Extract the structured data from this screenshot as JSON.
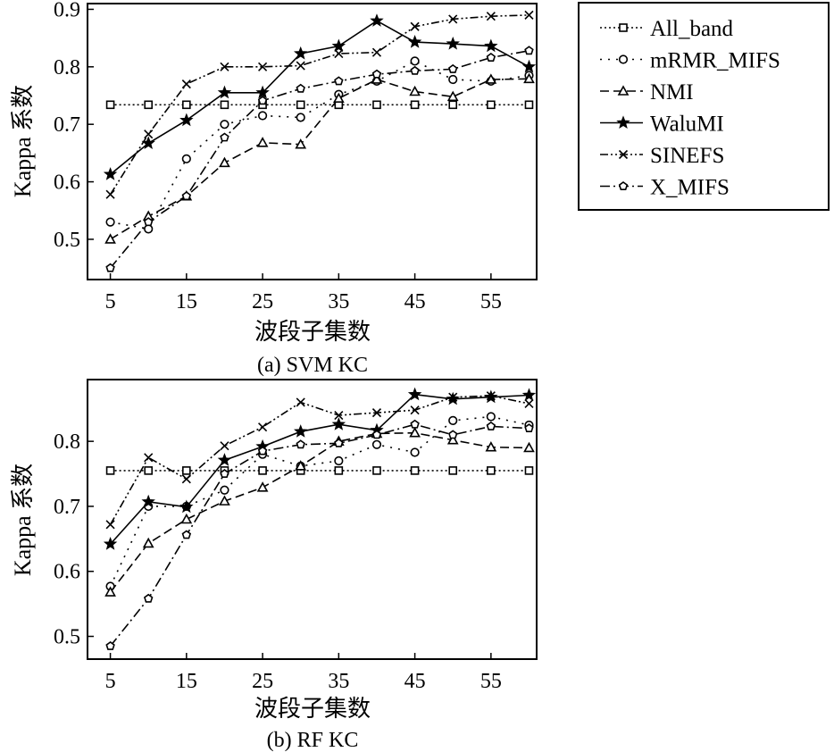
{
  "legend": {
    "entries": [
      "All_band",
      "mRMR_MIFS",
      "NMI",
      "WaluMI",
      "SINEFS",
      "X_MIFS"
    ]
  },
  "chart_data": [
    {
      "type": "line",
      "caption": "(a) SVM KC",
      "xlabel": "波段子集数",
      "ylabel": "Kappa 系数",
      "x": [
        5,
        10,
        15,
        20,
        25,
        30,
        35,
        40,
        45,
        50,
        55,
        60
      ],
      "xticks": [
        5,
        15,
        25,
        35,
        45,
        55
      ],
      "yticks": [
        0.5,
        0.6,
        0.7,
        0.8,
        0.9
      ],
      "xlim": [
        2,
        61
      ],
      "ylim": [
        0.43,
        0.91
      ],
      "grid": false,
      "legend_position": "right",
      "series": [
        {
          "name": "All_band",
          "marker": "square",
          "dash": "dotted",
          "values": [
            0.734,
            0.734,
            0.734,
            0.734,
            0.734,
            0.734,
            0.734,
            0.734,
            0.734,
            0.734,
            0.734,
            0.734
          ]
        },
        {
          "name": "mRMR_MIFS",
          "marker": "circle",
          "dash": "sparse-dotted",
          "values": [
            0.53,
            0.518,
            0.64,
            0.7,
            0.715,
            0.712,
            0.752,
            0.775,
            0.81,
            0.778,
            0.775,
            0.785
          ]
        },
        {
          "name": "NMI",
          "marker": "triangle",
          "dash": "dashed",
          "values": [
            0.5,
            0.54,
            0.575,
            0.633,
            0.668,
            0.665,
            0.745,
            0.778,
            0.757,
            0.748,
            0.778,
            0.779
          ]
        },
        {
          "name": "WaluMI",
          "marker": "star",
          "dash": "solid",
          "values": [
            0.613,
            0.667,
            0.707,
            0.755,
            0.755,
            0.823,
            0.836,
            0.88,
            0.843,
            0.84,
            0.836,
            0.8
          ]
        },
        {
          "name": "SINEFS",
          "marker": "x",
          "dash": "dash-dot-dot",
          "values": [
            0.578,
            0.683,
            0.77,
            0.8,
            0.8,
            0.802,
            0.823,
            0.825,
            0.87,
            0.883,
            0.888,
            0.89
          ]
        },
        {
          "name": "X_MIFS",
          "marker": "pentagon",
          "dash": "dash-dot",
          "values": [
            0.45,
            0.53,
            0.575,
            0.677,
            0.741,
            0.762,
            0.775,
            0.787,
            0.793,
            0.796,
            0.816,
            0.828
          ]
        }
      ]
    },
    {
      "type": "line",
      "caption": "(b) RF KC",
      "xlabel": "波段子集数",
      "ylabel": "Kappa 系数",
      "x": [
        5,
        10,
        15,
        20,
        25,
        30,
        35,
        40,
        45,
        50,
        55,
        60
      ],
      "xticks": [
        5,
        15,
        25,
        35,
        45,
        55
      ],
      "yticks": [
        0.5,
        0.6,
        0.7,
        0.8
      ],
      "xlim": [
        2,
        61
      ],
      "ylim": [
        0.465,
        0.895
      ],
      "grid": false,
      "legend_position": "right",
      "series": [
        {
          "name": "All_band",
          "marker": "square",
          "dash": "dotted",
          "values": [
            0.755,
            0.755,
            0.755,
            0.755,
            0.755,
            0.755,
            0.755,
            0.755,
            0.755,
            0.755,
            0.755,
            0.755
          ]
        },
        {
          "name": "mRMR_MIFS",
          "marker": "circle",
          "dash": "sparse-dotted",
          "values": [
            0.577,
            0.7,
            0.7,
            0.725,
            0.78,
            0.762,
            0.77,
            0.795,
            0.783,
            0.832,
            0.838,
            0.825
          ]
        },
        {
          "name": "NMI",
          "marker": "triangle",
          "dash": "dashed",
          "values": [
            0.568,
            0.643,
            0.68,
            0.708,
            0.729,
            0.762,
            0.8,
            0.812,
            0.813,
            0.802,
            0.791,
            0.79
          ]
        },
        {
          "name": "WaluMI",
          "marker": "star",
          "dash": "solid",
          "values": [
            0.642,
            0.707,
            0.699,
            0.771,
            0.792,
            0.815,
            0.826,
            0.817,
            0.872,
            0.865,
            0.868,
            0.871
          ]
        },
        {
          "name": "SINEFS",
          "marker": "x",
          "dash": "dash-dot-dot",
          "values": [
            0.672,
            0.775,
            0.742,
            0.793,
            0.822,
            0.86,
            0.84,
            0.844,
            0.848,
            0.868,
            0.87,
            0.858
          ]
        },
        {
          "name": "X_MIFS",
          "marker": "pentagon",
          "dash": "dash-dot",
          "values": [
            0.485,
            0.558,
            0.656,
            0.75,
            0.785,
            0.795,
            0.797,
            0.81,
            0.826,
            0.81,
            0.823,
            0.82
          ]
        }
      ]
    }
  ]
}
